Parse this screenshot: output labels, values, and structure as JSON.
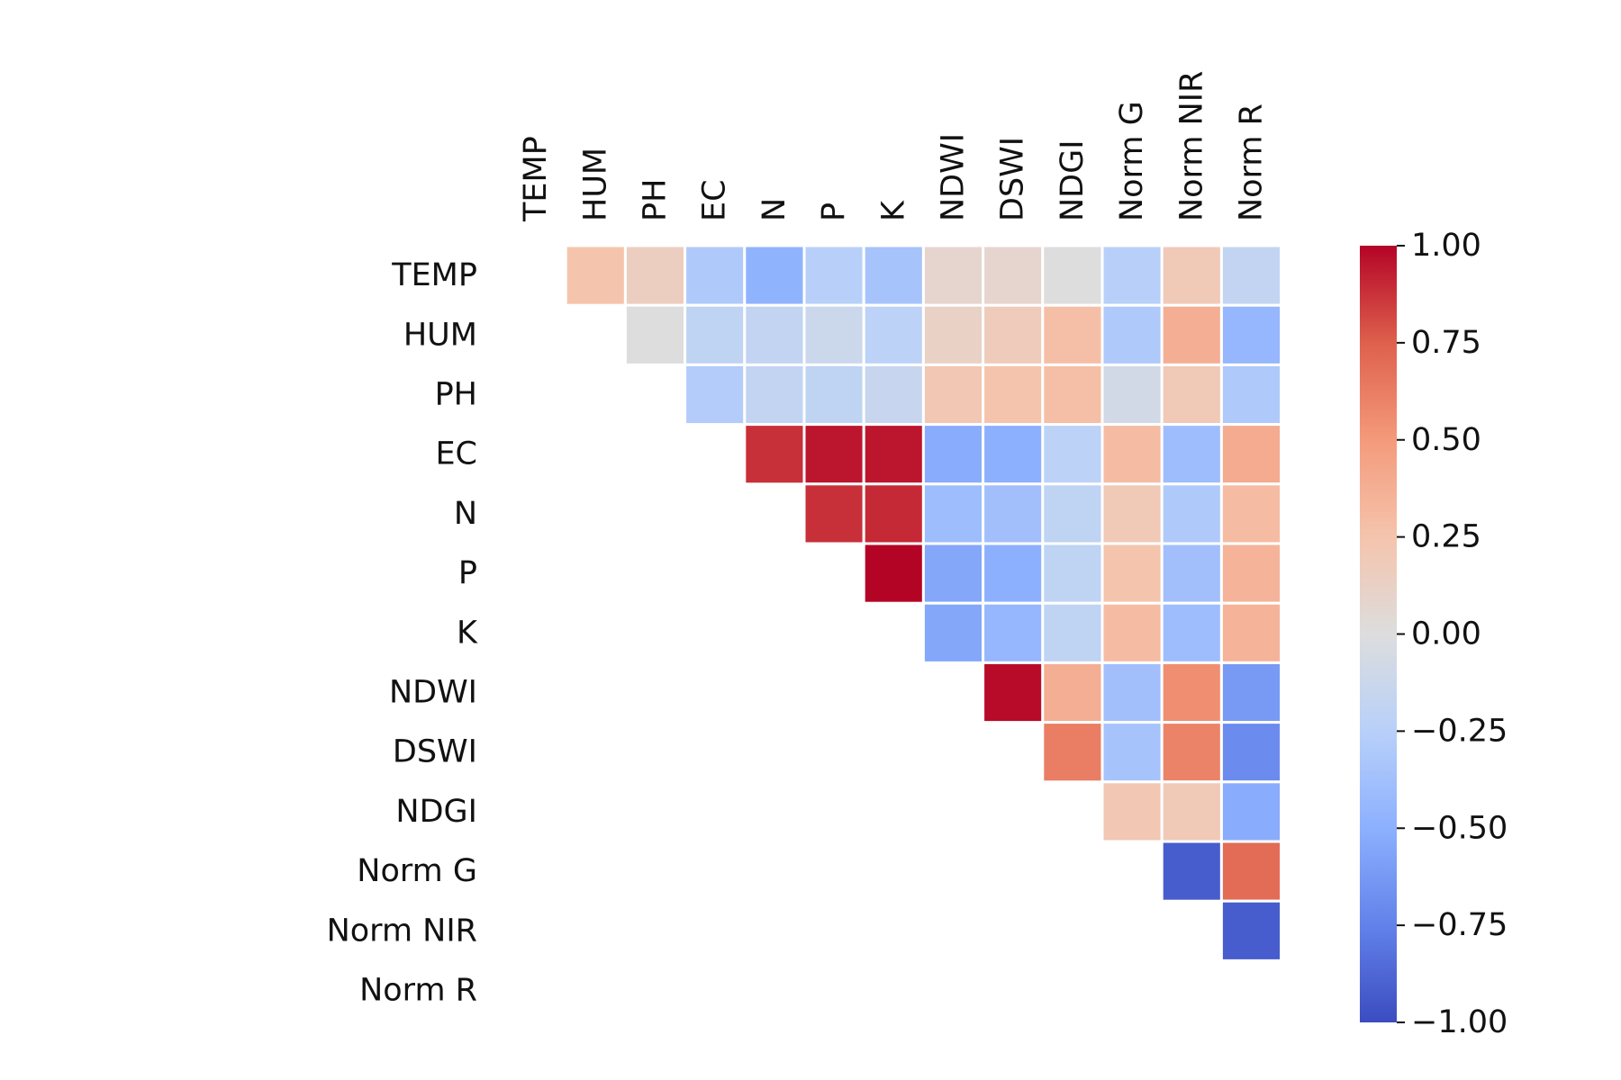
{
  "chart_data": {
    "type": "heatmap",
    "title": "",
    "xlabel": "",
    "ylabel": "",
    "mask": "upper-triangle-only (lower triangle and diagonal blank)",
    "grid": "white cell borders",
    "legend": "colorbar right",
    "colormap": "coolwarm",
    "vmin": -1.0,
    "vmax": 1.0,
    "colorbar_ticks": [
      "1.00",
      "0.75",
      "0.50",
      "0.25",
      "0.00",
      "−0.25",
      "−0.50",
      "−0.75",
      "−1.00"
    ],
    "colorbar_tick_values": [
      1.0,
      0.75,
      0.5,
      0.25,
      0.0,
      -0.25,
      -0.5,
      -0.75,
      -1.0
    ],
    "labels": [
      "TEMP",
      "HUM",
      "PH",
      "EC",
      "N",
      "P",
      "K",
      "NDWI",
      "DSWI",
      "NDGI",
      "Norm G",
      "Norm NIR",
      "Norm R"
    ],
    "matrix": [
      [
        null,
        0.25,
        0.15,
        -0.3,
        -0.48,
        -0.25,
        -0.35,
        0.08,
        0.08,
        0.0,
        -0.25,
        0.2,
        -0.18
      ],
      [
        null,
        null,
        0.0,
        -0.2,
        -0.18,
        -0.12,
        -0.22,
        0.12,
        0.18,
        0.28,
        -0.3,
        0.38,
        -0.45
      ],
      [
        null,
        null,
        null,
        -0.28,
        -0.18,
        -0.2,
        -0.15,
        0.22,
        0.25,
        0.28,
        -0.08,
        0.2,
        -0.3
      ],
      [
        null,
        null,
        null,
        null,
        0.88,
        0.95,
        0.95,
        -0.52,
        -0.5,
        -0.22,
        0.3,
        -0.4,
        0.4
      ],
      [
        null,
        null,
        null,
        null,
        null,
        0.88,
        0.9,
        -0.4,
        -0.38,
        -0.2,
        0.2,
        -0.3,
        0.3
      ],
      [
        null,
        null,
        null,
        null,
        null,
        null,
        1.0,
        -0.55,
        -0.5,
        -0.2,
        0.25,
        -0.38,
        0.35
      ],
      [
        null,
        null,
        null,
        null,
        null,
        null,
        null,
        -0.55,
        -0.45,
        -0.2,
        0.3,
        -0.4,
        0.35
      ],
      [
        null,
        null,
        null,
        null,
        null,
        null,
        null,
        null,
        0.98,
        0.38,
        -0.38,
        0.55,
        -0.62
      ],
      [
        null,
        null,
        null,
        null,
        null,
        null,
        null,
        null,
        null,
        0.62,
        -0.35,
        0.6,
        -0.7
      ],
      [
        null,
        null,
        null,
        null,
        null,
        null,
        null,
        null,
        null,
        null,
        0.22,
        0.2,
        -0.52
      ],
      [
        null,
        null,
        null,
        null,
        null,
        null,
        null,
        null,
        null,
        null,
        null,
        -0.92,
        0.7
      ],
      [
        null,
        null,
        null,
        null,
        null,
        null,
        null,
        null,
        null,
        null,
        null,
        null,
        -0.92
      ],
      [
        null,
        null,
        null,
        null,
        null,
        null,
        null,
        null,
        null,
        null,
        null,
        null,
        null
      ]
    ]
  }
}
